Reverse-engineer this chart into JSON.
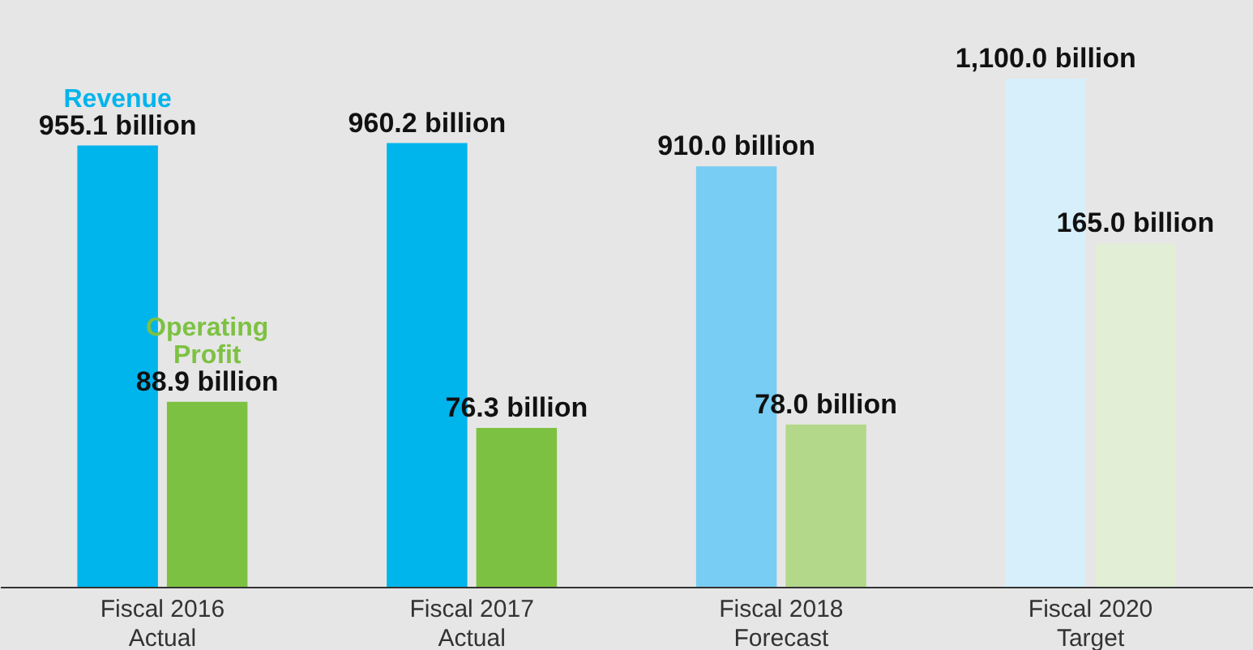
{
  "chart_data": {
    "type": "bar",
    "categories": [
      "Fiscal 2016\nActual",
      "Fiscal 2017\nActual",
      "Fiscal 2018\nForecast",
      "Fiscal 2020\nTarget"
    ],
    "series": [
      {
        "name": "Revenue",
        "colors": [
          "#00b4ec",
          "#00b4ec",
          "#77cdf3",
          "#d6effb"
        ],
        "values": [
          955.1,
          960.2,
          910.0,
          1100.0
        ],
        "value_labels": [
          "955.1 billion",
          "960.2 billion",
          "910.0 billion",
          "1,100.0 billion"
        ]
      },
      {
        "name": "Operating Profit",
        "axis": "y2",
        "colors": [
          "#7dc142",
          "#7dc142",
          "#b3d88a",
          "#e2efd6"
        ],
        "values": [
          88.9,
          76.3,
          78.0,
          165.0
        ],
        "value_labels": [
          "88.9 billion",
          "76.3 billion",
          "78.0 billion",
          "165.0 billion"
        ]
      }
    ],
    "ylim": [
      0,
      1270
    ],
    "y2lim": [
      0,
      282
    ],
    "tick_labels": "x"
  }
}
